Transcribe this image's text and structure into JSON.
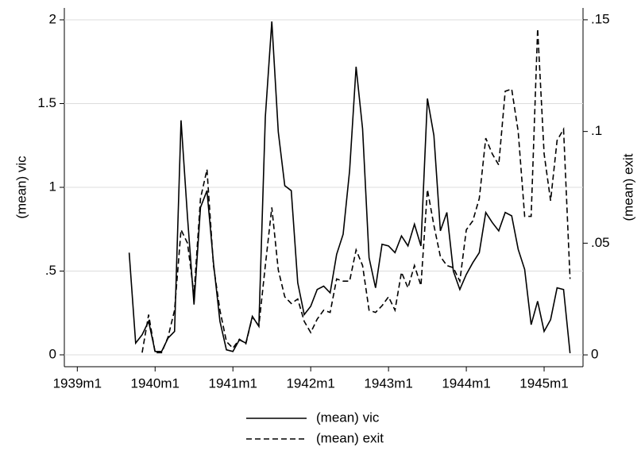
{
  "chart_data": {
    "type": "line",
    "x": [
      "1939m9",
      "1939m10",
      "1939m11",
      "1939m12",
      "1940m1",
      "1940m2",
      "1940m3",
      "1940m4",
      "1940m5",
      "1940m6",
      "1940m7",
      "1940m8",
      "1940m9",
      "1940m10",
      "1940m11",
      "1940m12",
      "1941m1",
      "1941m2",
      "1941m3",
      "1941m4",
      "1941m5",
      "1941m6",
      "1941m7",
      "1941m8",
      "1941m9",
      "1941m10",
      "1941m11",
      "1941m12",
      "1942m1",
      "1942m2",
      "1942m3",
      "1942m4",
      "1942m5",
      "1942m6",
      "1942m7",
      "1942m8",
      "1942m9",
      "1942m10",
      "1942m11",
      "1942m12",
      "1943m1",
      "1943m2",
      "1943m3",
      "1943m4",
      "1943m5",
      "1943m6",
      "1943m7",
      "1943m8",
      "1943m9",
      "1943m10",
      "1943m11",
      "1943m12",
      "1944m1",
      "1944m2",
      "1944m3",
      "1944m4",
      "1944m5",
      "1944m6",
      "1944m7",
      "1944m8",
      "1944m9",
      "1944m10",
      "1944m11",
      "1944m12",
      "1945m1",
      "1945m2",
      "1945m3",
      "1945m4",
      "1945m5"
    ],
    "series": [
      {
        "name": "(mean) vic",
        "color": "#000000",
        "dash": "solid",
        "axis": "y",
        "values": [
          0.61,
          0.07,
          0.12,
          0.2,
          0.02,
          0.02,
          0.1,
          0.14,
          1.4,
          0.82,
          0.3,
          0.88,
          0.98,
          0.55,
          0.2,
          0.03,
          0.02,
          0.09,
          0.07,
          0.23,
          0.17,
          1.42,
          1.99,
          1.33,
          1.01,
          0.98,
          0.43,
          0.24,
          0.29,
          0.39,
          0.41,
          0.37,
          0.6,
          0.72,
          1.1,
          1.72,
          1.35,
          0.58,
          0.4,
          0.66,
          0.65,
          0.61,
          0.71,
          0.65,
          0.78,
          0.65,
          1.53,
          1.31,
          0.74,
          0.85,
          0.5,
          0.39,
          0.48,
          0.55,
          0.61,
          0.85,
          0.79,
          0.74,
          0.85,
          0.83,
          0.63,
          0.51,
          0.18,
          0.32,
          0.14,
          0.21,
          0.4,
          0.39,
          0.01
        ]
      },
      {
        "name": "(mean) exit",
        "color": "#000000",
        "dash": "dashed",
        "axis": "y2",
        "values": [
          null,
          null,
          0.001,
          0.018,
          0.001,
          0.001,
          0.008,
          0.02,
          0.056,
          0.05,
          0.027,
          0.07,
          0.083,
          0.04,
          0.02,
          0.006,
          0.003,
          0.007,
          0.005,
          0.017,
          0.013,
          0.04,
          0.066,
          0.038,
          0.026,
          0.023,
          0.025,
          0.015,
          0.01,
          0.016,
          0.02,
          0.019,
          0.034,
          0.033,
          0.033,
          0.047,
          0.04,
          0.02,
          0.019,
          0.022,
          0.026,
          0.02,
          0.037,
          0.03,
          0.04,
          0.031,
          0.074,
          0.058,
          0.044,
          0.04,
          0.039,
          0.033,
          0.056,
          0.06,
          0.07,
          0.097,
          0.09,
          0.085,
          0.118,
          0.119,
          0.1,
          0.062,
          0.062,
          0.146,
          0.09,
          0.069,
          0.096,
          0.101,
          0.034
        ]
      }
    ],
    "y_label": "(mean) vic",
    "y2_label": "(mean) exit",
    "xlim": [
      "1938m11",
      "1945m7"
    ],
    "xticks": [
      "1939m1",
      "1940m1",
      "1941m1",
      "1942m1",
      "1943m1",
      "1944m1",
      "1945m1"
    ],
    "ylim": [
      -0.071,
      2.071
    ],
    "yticks": [
      0,
      {
        "value": 0.5,
        "label": ".5"
      },
      1,
      1.5,
      2
    ],
    "y2lim": [
      -0.0053,
      0.1553
    ],
    "y2ticks": [
      0,
      {
        "value": 0.05,
        "label": ".05"
      },
      {
        "value": 0.1,
        "label": ".1"
      },
      {
        "value": 0.15,
        "label": ".15"
      }
    ],
    "grid": true
  }
}
